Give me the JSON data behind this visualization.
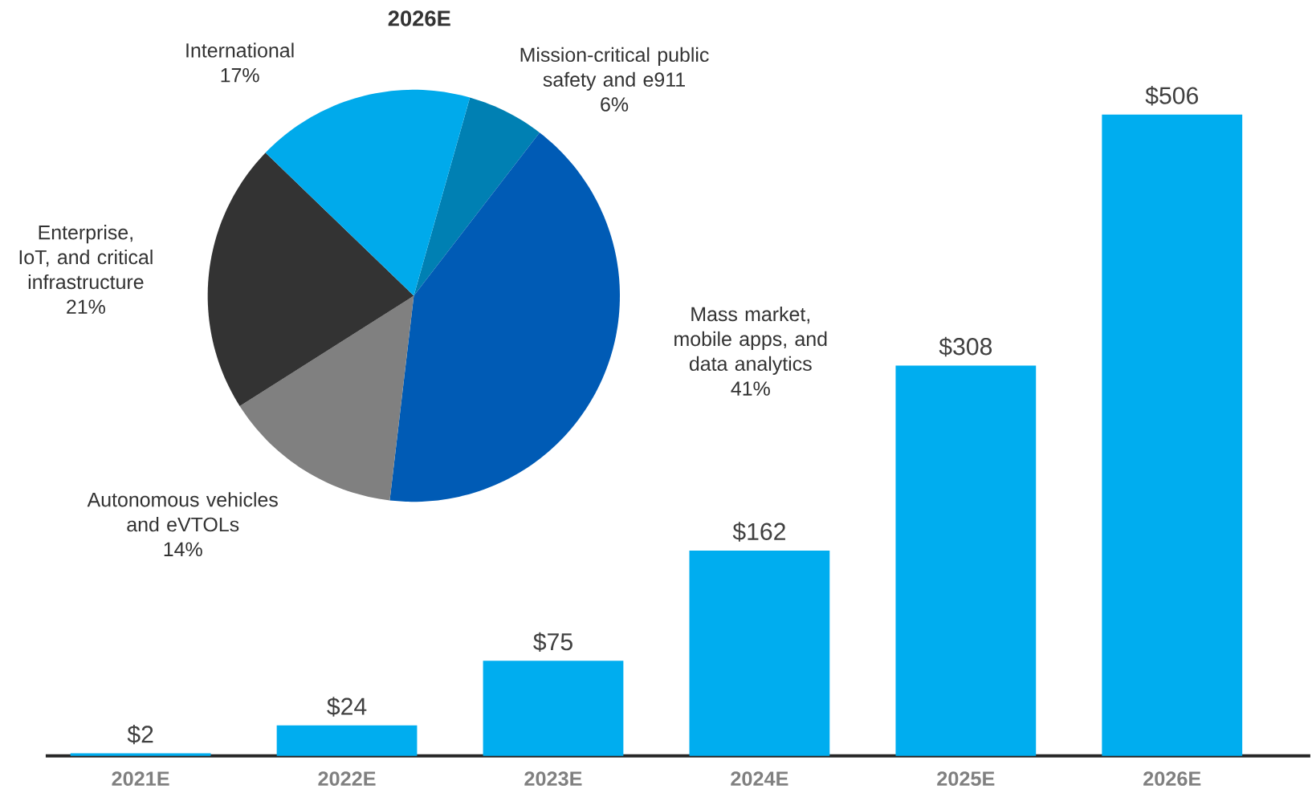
{
  "chart_data": [
    {
      "type": "bar",
      "categories": [
        "2021E",
        "2022E",
        "2023E",
        "2024E",
        "2025E",
        "2026E"
      ],
      "values": [
        2,
        24,
        75,
        162,
        308,
        506
      ],
      "value_labels": [
        "$2",
        "$24",
        "$75",
        "$162",
        "$308",
        "$506"
      ],
      "color": "#00adef"
    },
    {
      "type": "pie",
      "title": "2026E",
      "categories": [
        "Mission-critical public safety and e911",
        "Mass market, mobile apps, and data analytics",
        "Autonomous vehicles and eVTOLs",
        "Enterprise, IoT, and critical infrastructure",
        "International"
      ],
      "values": [
        6,
        41,
        14,
        21,
        17
      ],
      "value_labels": [
        "6%",
        "41%",
        "14%",
        "21%",
        "17%"
      ],
      "colors": [
        "#0080b3",
        "#005bb5",
        "#808080",
        "#333333",
        "#00aaeb"
      ]
    }
  ]
}
